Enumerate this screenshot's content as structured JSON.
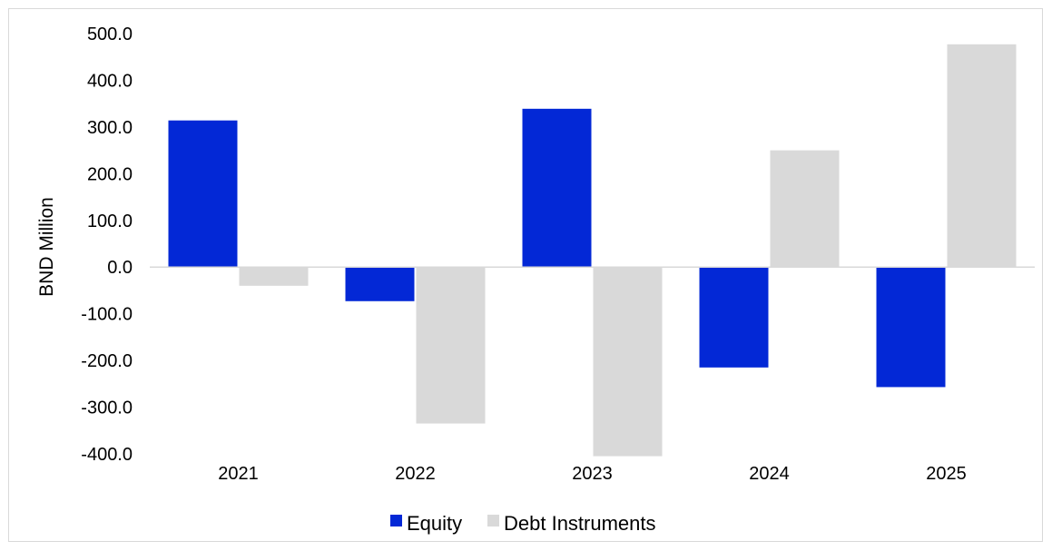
{
  "chart_data": {
    "type": "bar",
    "title": "",
    "xlabel": "",
    "ylabel": "BND Million",
    "categories": [
      "2021",
      "2022",
      "2023",
      "2024",
      "2025"
    ],
    "series": [
      {
        "name": "Equity",
        "color": "#0328d6",
        "values": [
          314.0,
          -73.0,
          339.0,
          -215.0,
          -257.0
        ]
      },
      {
        "name": "Debt Instruments",
        "color": "#d9d9d9",
        "values": [
          -40.0,
          -335.0,
          -405.0,
          250.0,
          477.0
        ]
      }
    ],
    "ylim": [
      -400,
      500
    ],
    "yticks": [
      "500.0",
      "400.0",
      "300.0",
      "200.0",
      "100.0",
      "0.0",
      "-100.0",
      "-200.0",
      "-300.0",
      "-400.0"
    ],
    "grid": false,
    "legend_position": "bottom"
  }
}
